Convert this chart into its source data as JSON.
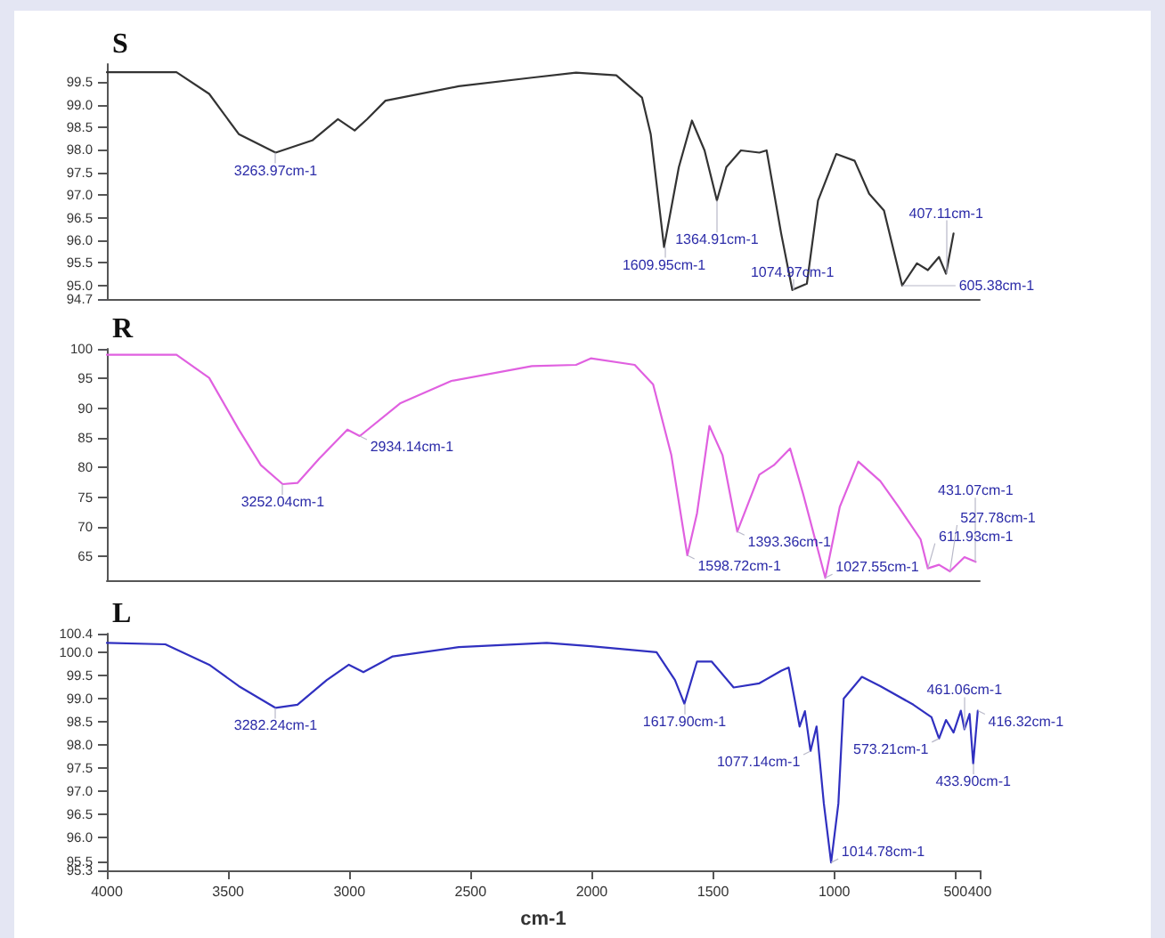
{
  "chart_data": [
    {
      "type": "line",
      "title": "S",
      "color": "#333333",
      "tick_labels": "y",
      "x": [
        4000,
        3713,
        3578,
        3456,
        3304,
        3153,
        3047,
        2978,
        2927,
        2851,
        2549,
        2247,
        2065,
        1899,
        1793,
        1757,
        1702,
        1641,
        1587,
        1535,
        1484,
        1445,
        1385,
        1309,
        1279,
        1219,
        1173,
        1113,
        1067,
        992,
        916,
        856,
        795,
        720,
        659,
        614,
        568,
        539,
        508
      ],
      "values": [
        99.72,
        99.72,
        99.24,
        98.35,
        97.94,
        98.21,
        98.68,
        98.43,
        98.68,
        99.09,
        99.41,
        99.6,
        99.71,
        99.65,
        99.16,
        98.35,
        95.85,
        97.62,
        98.65,
        97.99,
        96.88,
        97.62,
        97.99,
        97.94,
        97.99,
        96.15,
        94.9,
        95.04,
        96.88,
        97.91,
        97.76,
        97.03,
        96.66,
        95.0,
        95.49,
        95.34,
        95.63,
        95.26,
        96.15
      ],
      "xlim": [
        4000,
        400
      ],
      "xticks": [
        4000,
        3500,
        3000,
        2500,
        2000,
        1500,
        1000,
        500,
        400
      ],
      "ylim": [
        94.7,
        99.9
      ],
      "yticks": [
        94.7,
        {
          "value": 95,
          "label": "95.0"
        },
        95.5,
        {
          "value": 96,
          "label": "96.0"
        },
        96.5,
        {
          "value": 97,
          "label": "97.0"
        },
        97.5,
        {
          "value": 98,
          "label": "98.0"
        },
        98.5,
        {
          "value": 99,
          "label": "99.0"
        },
        99.5
      ],
      "annotations": [
        {
          "text": "3263.97cm-1",
          "x": 3304,
          "y": 97.94
        },
        {
          "text": "1609.95cm-1",
          "x": 1702,
          "y": 95.85
        },
        {
          "text": "1364.91cm-1",
          "x": 1484,
          "y": 96.88
        },
        {
          "text": "1074.97cm-1",
          "x": 1173,
          "y": 94.9
        },
        {
          "text": "605.38cm-1",
          "x": 720,
          "y": 95.0
        },
        {
          "text": "407.11cm-1",
          "x": 539,
          "y": 95.26
        }
      ]
    },
    {
      "type": "line",
      "title": "R",
      "color": "#e060e0",
      "tick_labels": "y",
      "x": [
        4000,
        3713,
        3578,
        3456,
        3365,
        3275,
        3214,
        3124,
        3008,
        2957,
        2791,
        2579,
        2247,
        2065,
        2004,
        1823,
        1747,
        1672,
        1606,
        1566,
        1515,
        1461,
        1400,
        1309,
        1249,
        1182,
        1128,
        1037,
        977,
        901,
        810,
        735,
        644,
        614,
        568,
        523,
        463,
        417
      ],
      "values": [
        99.0,
        99.0,
        95.1,
        86.4,
        80.4,
        77.2,
        77.4,
        81.5,
        86.4,
        85.3,
        90.8,
        94.6,
        97.1,
        97.3,
        98.4,
        97.3,
        94.0,
        82.1,
        65.2,
        72.3,
        87.0,
        82.1,
        69.2,
        78.8,
        80.4,
        83.2,
        75.5,
        61.4,
        73.4,
        81.0,
        77.7,
        73.4,
        67.9,
        63.0,
        63.6,
        62.5,
        64.9,
        64.1
      ],
      "xlim": [
        4000,
        400
      ],
      "xticks": [
        4000,
        3500,
        3000,
        2500,
        2000,
        1500,
        1000,
        500,
        400
      ],
      "ylim": [
        61,
        100
      ],
      "yticks": [
        65,
        70,
        75,
        80,
        85,
        90,
        95,
        100
      ],
      "annotations": [
        {
          "text": "3252.04cm-1",
          "x": 3275,
          "y": 77.2
        },
        {
          "text": "2934.14cm-1",
          "x": 2957,
          "y": 85.3
        },
        {
          "text": "1598.72cm-1",
          "x": 1606,
          "y": 65.2
        },
        {
          "text": "1393.36cm-1",
          "x": 1400,
          "y": 69.2
        },
        {
          "text": "1027.55cm-1",
          "x": 1037,
          "y": 61.4
        },
        {
          "text": "611.93cm-1",
          "x": 614,
          "y": 63.0
        },
        {
          "text": "527.78cm-1",
          "x": 523,
          "y": 62.5
        },
        {
          "text": "431.07cm-1",
          "x": 417,
          "y": 64.1
        }
      ]
    },
    {
      "type": "line",
      "title": "L",
      "color": "#3030c0",
      "xlabel": "cm-1",
      "x": [
        4000,
        3759,
        3578,
        3456,
        3304,
        3214,
        3093,
        3002,
        2942,
        2821,
        2549,
        2186,
        2004,
        1733,
        1657,
        1618,
        1566,
        1506,
        1415,
        1309,
        1219,
        1188,
        1164,
        1143,
        1121,
        1098,
        1073,
        1043,
        1013,
        983,
        961,
        886,
        810,
        674,
        599,
        568,
        539,
        508,
        478,
        463,
        442,
        427,
        408
      ],
      "values": [
        100.2,
        100.17,
        99.73,
        99.27,
        98.8,
        98.87,
        99.4,
        99.73,
        99.57,
        99.91,
        100.11,
        100.2,
        100.13,
        100.0,
        99.4,
        98.89,
        99.8,
        99.8,
        99.24,
        99.33,
        99.6,
        99.67,
        99.0,
        98.4,
        98.73,
        97.87,
        98.4,
        96.74,
        95.47,
        96.74,
        99.0,
        99.47,
        99.27,
        98.87,
        98.6,
        98.14,
        98.54,
        98.27,
        98.74,
        98.34,
        98.67,
        97.6,
        98.74
      ],
      "xlim": [
        4000,
        400
      ],
      "xticks": [
        4000,
        3500,
        3000,
        2500,
        2000,
        1500,
        1000,
        500,
        400
      ],
      "ylim": [
        95.3,
        100.4
      ],
      "yticks": [
        95.3,
        95.5,
        {
          "value": 96,
          "label": "96.0"
        },
        96.5,
        {
          "value": 97,
          "label": "97.0"
        },
        97.5,
        {
          "value": 98,
          "label": "98.0"
        },
        98.5,
        {
          "value": 99,
          "label": "99.0"
        },
        99.5,
        {
          "value": 100,
          "label": "100.0"
        },
        100.4
      ],
      "annotations": [
        {
          "text": "3282.24cm-1",
          "x": 3304,
          "y": 98.8
        },
        {
          "text": "1617.90cm-1",
          "x": 1618,
          "y": 98.89
        },
        {
          "text": "1077.14cm-1",
          "x": 1098,
          "y": 97.87
        },
        {
          "text": "1014.78cm-1",
          "x": 1013,
          "y": 95.47
        },
        {
          "text": "573.21cm-1",
          "x": 568,
          "y": 98.14
        },
        {
          "text": "461.06cm-1",
          "x": 463,
          "y": 98.34
        },
        {
          "text": "433.90cm-1",
          "x": 427,
          "y": 97.6
        },
        {
          "text": "416.32cm-1",
          "x": 408,
          "y": 98.74
        }
      ]
    }
  ]
}
